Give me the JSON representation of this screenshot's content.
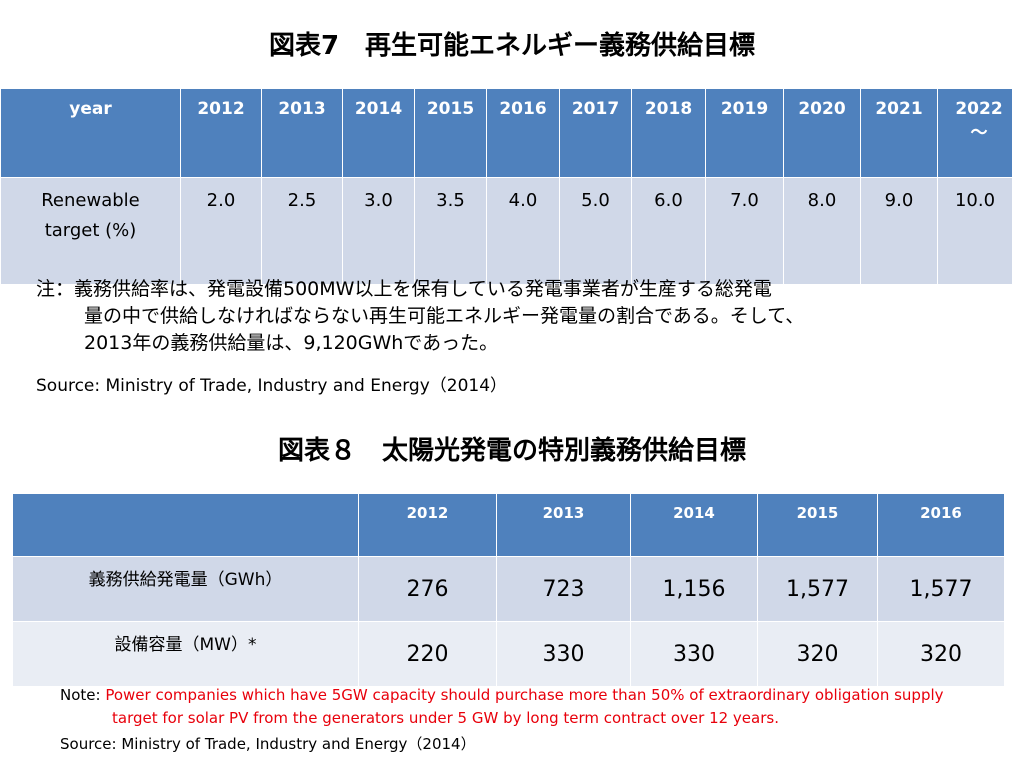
{
  "title1": "図表7　再生可能エネルギー義務供給目標",
  "table1": {
    "header_label": "year",
    "years": [
      "2012",
      "2013",
      "2014",
      "2015",
      "2016",
      "2017",
      "2018",
      "2019",
      "2020",
      "2021",
      "2022～"
    ],
    "row_label": "Renewable target (%)",
    "values": [
      "2.0",
      "2.5",
      "3.0",
      "3.5",
      "4.0",
      "5.0",
      "6.0",
      "7.0",
      "8.0",
      "9.0",
      "10.0"
    ]
  },
  "note1": {
    "line1": "注：義務供給率は、発電設備500MW以上を保有している発電事業者が生産する総発電",
    "line2": "量の中で供給しなければならない再生可能エネルギー発電量の割合である。そして、",
    "line3": "2013年の義務供給量は、9,120GWhであった。"
  },
  "source1": "Source:  Ministry of Trade, Industry and Energy（2014）",
  "title2": "図表８　太陽光発電の特別義務供給目標",
  "table2": {
    "header_blank": "",
    "years": [
      "2012",
      "2013",
      "2014",
      "2015",
      "2016"
    ],
    "rows": [
      {
        "label": "義務供給発電量（GWh）",
        "values": [
          "276",
          "723",
          "1,156",
          "1,577",
          "1,577"
        ]
      },
      {
        "label": "設備容量（MW）*",
        "values": [
          "220",
          "330",
          "330",
          "320",
          "320"
        ]
      }
    ]
  },
  "note2": {
    "prefix": "Note: ",
    "line1": "Power companies which have  5GW capacity should purchase more than 50% of extraordinary obligation supply",
    "line2": "target for solar PV from the generators under 5 GW by long term contract over 12 years."
  },
  "source2": "Source:  Ministry of Trade, Industry and Energy（2014）",
  "colors": {
    "header_blue": "#4f81bd",
    "row_light": "#d0d8e8",
    "row_lighter": "#e9edf4",
    "note_red": "#e8000b"
  }
}
